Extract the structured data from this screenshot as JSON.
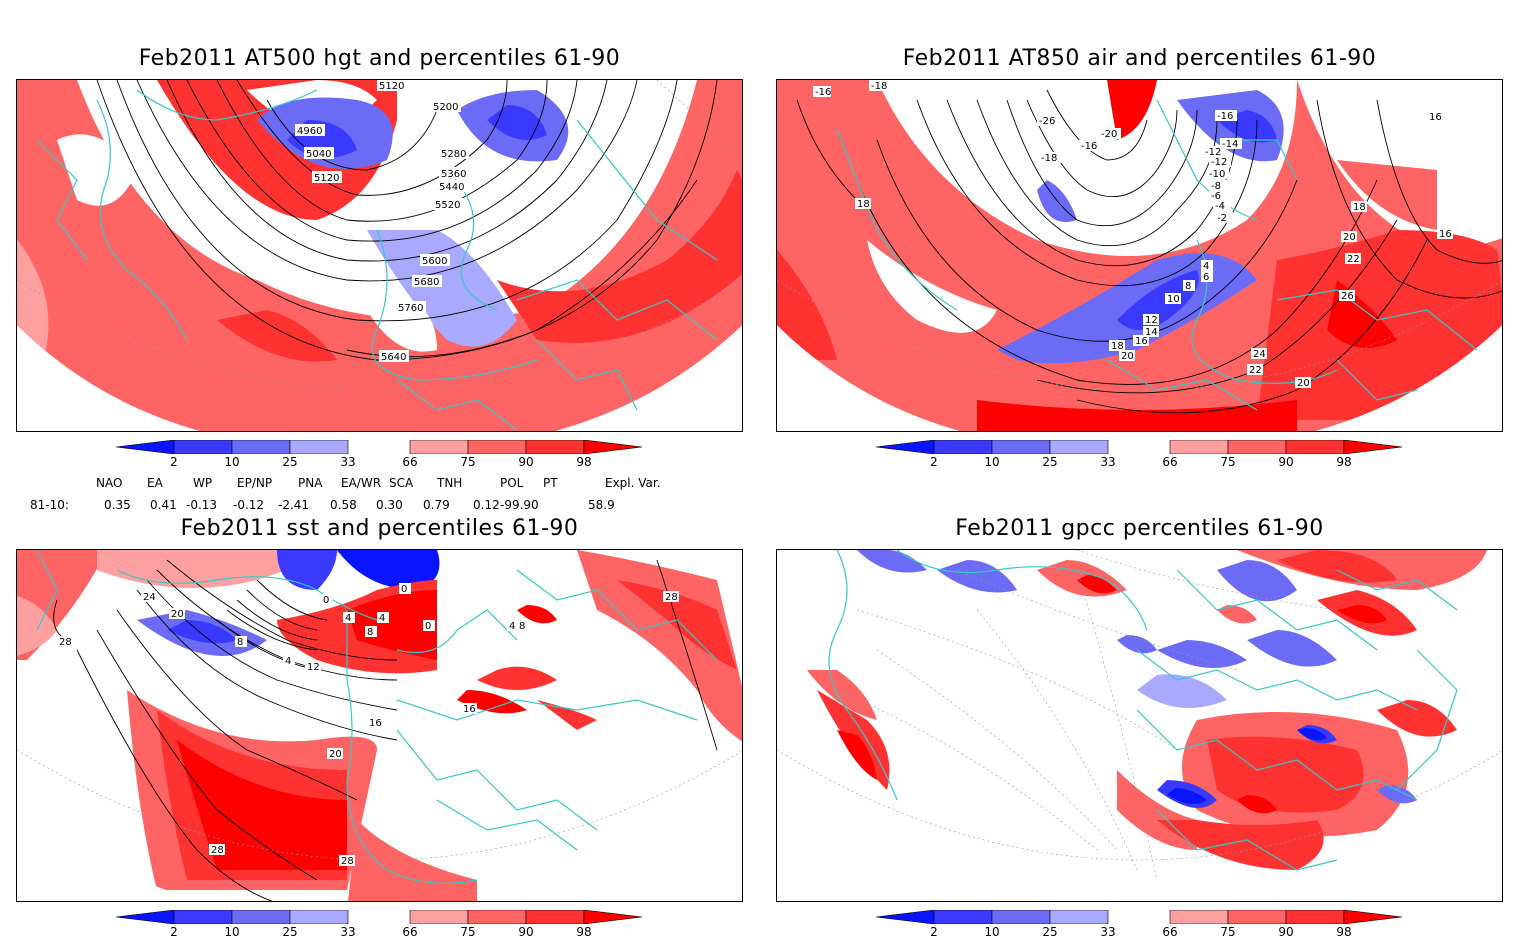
{
  "colors": {
    "blue_98": "#0a14ff",
    "blue_2_10": "#3a3aff",
    "blue_10_25": "#6b6bf5",
    "blue_25_33": "#a9a9ff",
    "red_66_75": "#ffa0a0",
    "red_75_90": "#ff6464",
    "red_90_98": "#ff3232",
    "red_98": "#ff0000",
    "coast": "#33c9c9",
    "contour": "#000000"
  },
  "colorbar": {
    "ticks": [
      "2",
      "10",
      "25",
      "33",
      "66",
      "75",
      "90",
      "98"
    ]
  },
  "panels": [
    {
      "title": "Feb2011 AT500 hgt and percentiles 61-90",
      "contour_labels": [
        "5120",
        "5200",
        "4960",
        "5040",
        "5120",
        "5280",
        "5360",
        "5440",
        "5520",
        "5600",
        "5680",
        "5760",
        "5640"
      ]
    },
    {
      "title": "Feb2011 AT850 air and percentiles 61-90",
      "contour_labels": [
        "-18",
        "-16",
        "-26",
        "-20",
        "-16",
        "-18",
        "-14",
        "-12",
        "-10",
        "-8",
        "-6",
        "-4",
        "-2",
        "-16",
        "-12",
        "16",
        "18",
        "18",
        "16",
        "20",
        "22",
        "4",
        "6",
        "8",
        "10",
        "12",
        "14",
        "16",
        "18",
        "20",
        "26",
        "24",
        "22",
        "20"
      ]
    },
    {
      "title": "Feb2011 sst and percentiles 61-90",
      "contour_labels": [
        "24",
        "28",
        "20",
        "0",
        "0",
        "4",
        "8",
        "4",
        "0",
        "4",
        "8",
        "12",
        "16",
        "16",
        "20",
        "28",
        "28",
        "28",
        "4",
        "8"
      ]
    },
    {
      "title": "Feb2011 gpcc percentiles 61-90",
      "contour_labels": []
    }
  ],
  "indices": {
    "headers": [
      "NAO",
      "EA",
      "WP",
      "EP/NP",
      "PNA",
      "EA/WR",
      "SCA",
      "TNH",
      "POL",
      "PT",
      "Expl. Var."
    ],
    "row_label": "81-10:",
    "values": [
      "0.35",
      "0.41",
      "-0.13",
      "-0.12",
      "-2.41",
      "0.58",
      "0.30",
      "0.79",
      "0.12",
      "-99.90",
      "58.9"
    ]
  }
}
